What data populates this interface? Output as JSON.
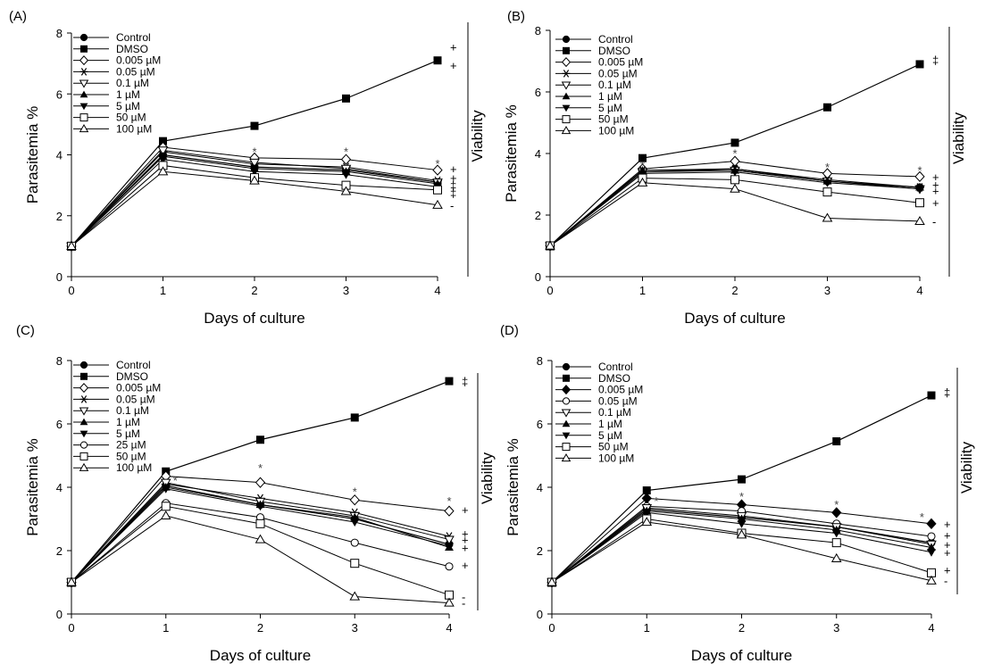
{
  "chart_data": [
    {
      "panel": "(A)",
      "type": "line",
      "xlabel": "Days of culture",
      "ylabel": "Parasitemia  %",
      "right_label": "Viability",
      "xlim": [
        0,
        4
      ],
      "ylim": [
        0,
        8
      ],
      "xticks": [
        0,
        1,
        2,
        3,
        4
      ],
      "yticks": [
        0,
        2,
        4,
        6,
        8
      ],
      "x": [
        0,
        1,
        2,
        3,
        4
      ],
      "series": [
        {
          "name": "Control",
          "marker": "circle-filled",
          "values": [
            1,
            4.0,
            3.6,
            3.5,
            3.1
          ]
        },
        {
          "name": "DMSO",
          "marker": "square-filled",
          "values": [
            1,
            4.45,
            4.95,
            5.85,
            7.1
          ]
        },
        {
          "name": "0.005 µM",
          "marker": "diamond-open",
          "values": [
            1,
            4.25,
            3.9,
            3.85,
            3.5
          ]
        },
        {
          "name": "0.05 µM",
          "marker": "asterisk",
          "values": [
            1,
            4.1,
            3.7,
            3.6,
            3.15
          ]
        },
        {
          "name": "0.1 µM",
          "marker": "triangle-down-open",
          "values": [
            1,
            4.15,
            3.75,
            3.55,
            3.1
          ]
        },
        {
          "name": "1 µM",
          "marker": "triangle-up-filled",
          "values": [
            1,
            3.95,
            3.55,
            3.45,
            3.05
          ]
        },
        {
          "name": "5 µM",
          "marker": "triangle-down-filled",
          "values": [
            1,
            3.85,
            3.45,
            3.35,
            2.95
          ]
        },
        {
          "name": "50 µM",
          "marker": "square-open",
          "values": [
            1,
            3.65,
            3.25,
            3.0,
            2.85
          ]
        },
        {
          "name": "100 µM",
          "marker": "triangle-up-open",
          "values": [
            1,
            3.45,
            3.15,
            2.8,
            2.35
          ]
        }
      ],
      "stars": [
        [
          2,
          4.15
        ],
        [
          3,
          4.15
        ],
        [
          4,
          3.75
        ]
      ],
      "viability": [
        {
          "symbol": "+",
          "y": 7.55
        },
        {
          "symbol": "+",
          "y": 6.95
        },
        {
          "symbol": "+",
          "y": 3.55
        },
        {
          "symbol": "+",
          "y": 3.25
        },
        {
          "symbol": "‡",
          "y": 3.0
        },
        {
          "symbol": "‡",
          "y": 2.75
        },
        {
          "symbol": "-",
          "y": 2.35
        }
      ]
    },
    {
      "panel": "(B)",
      "type": "line",
      "xlabel": "Days of culture",
      "ylabel": "Parasitemia  %",
      "right_label": "Viability",
      "xlim": [
        0,
        4
      ],
      "ylim": [
        0,
        8
      ],
      "xticks": [
        0,
        1,
        2,
        3,
        4
      ],
      "yticks": [
        0,
        2,
        4,
        6,
        8
      ],
      "x": [
        0,
        1,
        2,
        3,
        4
      ],
      "series": [
        {
          "name": "Control",
          "marker": "circle-filled",
          "values": [
            1,
            3.45,
            3.5,
            3.1,
            2.9
          ]
        },
        {
          "name": "DMSO",
          "marker": "square-filled",
          "values": [
            1,
            3.85,
            4.35,
            5.5,
            6.9
          ]
        },
        {
          "name": "0.005 µM",
          "marker": "diamond-open",
          "values": [
            1,
            3.5,
            3.75,
            3.35,
            3.25
          ]
        },
        {
          "name": "0.05 µM",
          "marker": "asterisk",
          "values": [
            1,
            3.45,
            3.5,
            3.15,
            2.9
          ]
        },
        {
          "name": "0.1 µM",
          "marker": "triangle-down-open",
          "values": [
            1,
            3.4,
            3.45,
            3.1,
            2.85
          ]
        },
        {
          "name": "1 µM",
          "marker": "triangle-up-filled",
          "values": [
            1,
            3.45,
            3.45,
            3.1,
            2.9
          ]
        },
        {
          "name": "5 µM",
          "marker": "triangle-down-filled",
          "values": [
            1,
            3.35,
            3.4,
            3.05,
            2.85
          ]
        },
        {
          "name": "50 µM",
          "marker": "square-open",
          "values": [
            1,
            3.2,
            3.15,
            2.75,
            2.4
          ]
        },
        {
          "name": "100 µM",
          "marker": "triangle-up-open",
          "values": [
            1,
            3.05,
            2.85,
            1.9,
            1.8
          ]
        }
      ],
      "stars": [
        [
          1,
          3.65
        ],
        [
          2,
          4.05
        ],
        [
          3,
          3.6
        ],
        [
          4,
          3.5
        ]
      ],
      "viability": [
        {
          "symbol": "‡",
          "y": 7.05
        },
        {
          "symbol": "+",
          "y": 3.25
        },
        {
          "symbol": "+",
          "y": 3.0
        },
        {
          "symbol": "+",
          "y": 2.8
        },
        {
          "symbol": "+",
          "y": 2.4
        },
        {
          "symbol": "-",
          "y": 1.8
        }
      ]
    },
    {
      "panel": "(C)",
      "type": "line",
      "xlabel": "Days of culture",
      "ylabel": "Parasitemia  %",
      "right_label": "Viability",
      "xlim": [
        0,
        4
      ],
      "ylim": [
        0,
        8
      ],
      "xticks": [
        0,
        1,
        2,
        3,
        4
      ],
      "yticks": [
        0,
        2,
        4,
        6,
        8
      ],
      "x": [
        0,
        1,
        2,
        3,
        4
      ],
      "series": [
        {
          "name": "Control",
          "marker": "circle-filled",
          "values": [
            1,
            4.05,
            3.45,
            3.0,
            2.2
          ]
        },
        {
          "name": "DMSO",
          "marker": "square-filled",
          "values": [
            1,
            4.5,
            5.5,
            6.2,
            7.35
          ]
        },
        {
          "name": "0.005 µM",
          "marker": "diamond-open",
          "values": [
            1,
            4.35,
            4.15,
            3.6,
            3.25
          ]
        },
        {
          "name": "0.05 µM",
          "marker": "asterisk",
          "values": [
            1,
            4.1,
            3.65,
            3.2,
            2.45
          ]
        },
        {
          "name": "0.1 µM",
          "marker": "triangle-down-open",
          "values": [
            1,
            4.15,
            3.55,
            3.1,
            2.35
          ]
        },
        {
          "name": "1 µM",
          "marker": "triangle-up-filled",
          "values": [
            1,
            4.0,
            3.45,
            3.05,
            2.1
          ]
        },
        {
          "name": "5 µM",
          "marker": "triangle-down-filled",
          "values": [
            1,
            3.95,
            3.4,
            2.9,
            2.15
          ]
        },
        {
          "name": "25 µM",
          "marker": "circle-open",
          "values": [
            1,
            3.5,
            3.05,
            2.25,
            1.5
          ]
        },
        {
          "name": "50 µM",
          "marker": "square-open",
          "values": [
            1,
            3.4,
            2.85,
            1.6,
            0.6
          ]
        },
        {
          "name": "100 µM",
          "marker": "triangle-up-open",
          "values": [
            1,
            3.1,
            2.35,
            0.55,
            0.35
          ]
        }
      ],
      "stars": [
        [
          1.1,
          4.25
        ],
        [
          2,
          4.65
        ],
        [
          3,
          3.9
        ],
        [
          4,
          3.6
        ]
      ],
      "viability": [
        {
          "symbol": "‡",
          "y": 7.35
        },
        {
          "symbol": "+",
          "y": 3.3
        },
        {
          "symbol": "+",
          "y": 2.55
        },
        {
          "symbol": "+",
          "y": 2.35
        },
        {
          "symbol": "+",
          "y": 2.1
        },
        {
          "symbol": "+",
          "y": 1.55
        },
        {
          "symbol": "-",
          "y": 0.55
        },
        {
          "symbol": "-",
          "y": 0.35
        }
      ]
    },
    {
      "panel": "(D)",
      "type": "line",
      "xlabel": "Days of culture",
      "ylabel": "Parasitemia  %",
      "right_label": "Viability",
      "xlim": [
        0,
        4
      ],
      "ylim": [
        0,
        8
      ],
      "xticks": [
        0,
        1,
        2,
        3,
        4
      ],
      "yticks": [
        0,
        2,
        4,
        6,
        8
      ],
      "x": [
        0,
        1,
        2,
        3,
        4
      ],
      "series": [
        {
          "name": "Control",
          "marker": "circle-filled",
          "values": [
            1,
            3.3,
            3.05,
            2.75,
            2.25
          ]
        },
        {
          "name": "DMSO",
          "marker": "square-filled",
          "values": [
            1,
            3.9,
            4.25,
            5.45,
            6.9
          ]
        },
        {
          "name": "0.005 µM",
          "marker": "diamond-filled",
          "values": [
            1,
            3.65,
            3.45,
            3.2,
            2.85
          ]
        },
        {
          "name": "0.05 µM",
          "marker": "circle-open",
          "values": [
            1,
            3.4,
            3.25,
            2.85,
            2.45
          ]
        },
        {
          "name": "0.1 µM",
          "marker": "triangle-down-open",
          "values": [
            1,
            3.35,
            3.1,
            2.75,
            2.2
          ]
        },
        {
          "name": "1 µM",
          "marker": "triangle-up-filled",
          "values": [
            1,
            3.25,
            3.0,
            2.65,
            2.1
          ]
        },
        {
          "name": "5 µM",
          "marker": "triangle-down-filled",
          "values": [
            1,
            3.2,
            2.85,
            2.55,
            1.95
          ]
        },
        {
          "name": "50 µM",
          "marker": "square-open",
          "values": [
            1,
            3.0,
            2.55,
            2.25,
            1.3
          ]
        },
        {
          "name": "100 µM",
          "marker": "triangle-up-open",
          "values": [
            1,
            2.9,
            2.5,
            1.75,
            1.05
          ]
        }
      ],
      "stars": [
        [
          1.1,
          3.6
        ],
        [
          2,
          3.75
        ],
        [
          3,
          3.5
        ],
        [
          3.9,
          3.1
        ]
      ],
      "viability": [
        {
          "symbol": "‡",
          "y": 7.0
        },
        {
          "symbol": "+",
          "y": 2.85
        },
        {
          "symbol": "+",
          "y": 2.5
        },
        {
          "symbol": "+",
          "y": 2.2
        },
        {
          "symbol": "+",
          "y": 1.95
        },
        {
          "symbol": "+",
          "y": 1.4
        },
        {
          "symbol": "-",
          "y": 1.05
        }
      ]
    }
  ]
}
